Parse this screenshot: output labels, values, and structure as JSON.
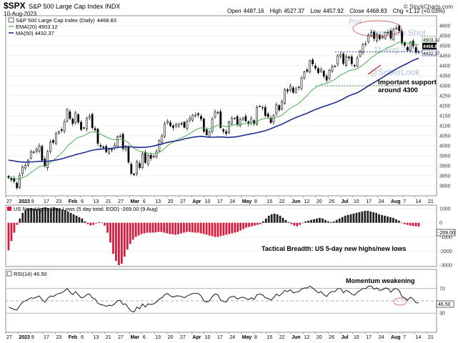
{
  "header": {
    "symbol": "$SPX",
    "title": "S&P 500 Large Cap Index INDX",
    "date": "10-Aug-2023",
    "ohlc": {
      "open_label": "Open",
      "open": "4487.16",
      "high_label": "High",
      "high": "4527.37",
      "low_label": "Low",
      "low": "4457.92",
      "close_label": "Close",
      "close": "4468.83",
      "chg_label": "Chg",
      "chg": "+1.12 (+0.03%)"
    },
    "credit": "© StockCharts.com"
  },
  "watermark": {
    "line1": "The Daily Shot",
    "date": "11-Aug-2023",
    "handle": "@SoberLook",
    "post": "Post"
  },
  "colors": {
    "up": "#000000",
    "down": "#000000",
    "ema": "#4caf50",
    "ma": "#1f2d8f",
    "support": "#2e7d32",
    "breadth_pos": "#222222",
    "breadth_neg": "#d81b3c",
    "rsi": "#000000",
    "callout": "#c62828",
    "watermark": "#6a8fc2"
  },
  "chart_data": [
    {
      "type": "candlestick",
      "title": "S&P 500 Large Cap Index (Daily) 4468.83",
      "ylim": [
        3750,
        4650
      ],
      "y_ticks": [
        3800,
        3850,
        3900,
        3950,
        4000,
        4050,
        4100,
        4150,
        4200,
        4250,
        4300,
        4350,
        4400,
        4450,
        4500,
        4550,
        4600
      ],
      "x_tick_labels": [
        "27",
        "2023",
        "9",
        "17",
        "23",
        "Feb",
        "6",
        "13",
        "21",
        "27",
        "Mar",
        "6",
        "13",
        "20",
        "27",
        "Apr",
        "10",
        "17",
        "24",
        "May",
        "8",
        "15",
        "22",
        "Jun",
        "12",
        "20",
        "26",
        "Jul",
        "10",
        "17",
        "24",
        "Aug",
        "7",
        "14",
        "21"
      ],
      "month_labels": [
        "Feb",
        "Mar",
        "Apr",
        "May",
        "Jun",
        "Jul",
        "Aug"
      ],
      "legend": [
        {
          "name": "S&P 500 Large Cap Index (Daily)",
          "value": "4468.83"
        },
        {
          "name": "EMA(20)",
          "value": "4503.12"
        },
        {
          "name": "MA(50)",
          "value": "4432.37"
        }
      ],
      "price_labels": {
        "ema": "4503.12",
        "close": "4468.83",
        "ma": "4432.37"
      },
      "close": [
        3840,
        3830,
        3822,
        3790,
        3853,
        3895,
        3901,
        3928,
        3970,
        3969,
        3983,
        3999,
        3928,
        3898,
        3972,
        4019,
        4017,
        4060,
        4071,
        4076,
        4120,
        4180,
        4136,
        4111,
        4164,
        4118,
        4081,
        4090,
        4137,
        4147,
        4090,
        4079,
        4012,
        3997,
        3991,
        3970,
        3982,
        3981,
        4003,
        4045,
        4048,
        3986,
        3992,
        3918,
        3861,
        3855,
        3920,
        3891,
        3960,
        3916,
        3951,
        3937,
        3948,
        3971,
        4027,
        4050,
        4109,
        4124,
        4100,
        4091,
        4105,
        4109,
        4108,
        4092,
        4124,
        4138,
        4151,
        4154,
        4155,
        4134,
        4072,
        4055,
        4071,
        4135,
        4169,
        4167,
        4091,
        4073,
        4061,
        4119,
        4137,
        4138,
        4108,
        4130,
        4137,
        4124,
        4110,
        4136,
        4110,
        4192,
        4198,
        4192,
        4151,
        4145,
        4116,
        4151,
        4205,
        4179,
        4221,
        4282,
        4273,
        4298,
        4267,
        4283,
        4293,
        4338,
        4369,
        4372,
        4425,
        4409,
        4388,
        4365,
        4381,
        4348,
        4328,
        4378,
        4396,
        4398,
        4450,
        4455,
        4411,
        4446,
        4439,
        4410,
        4399,
        4439,
        4473,
        4505,
        4510,
        4554,
        4565,
        4536,
        4555,
        4534,
        4544,
        4567,
        4566,
        4537,
        4582,
        4589,
        4576,
        4513,
        4502,
        4478,
        4518,
        4499,
        4467,
        4469
      ],
      "ema20_end": 4503.12,
      "ma50_end": 4432.37,
      "support_level": 4300,
      "close_level": 4468.83,
      "annotations": [
        "Important support around 4300"
      ]
    },
    {
      "type": "bar",
      "title": "US New Highs-New Lows (5 day total; EOD) -269.00 (9 Aug)",
      "ylim": [
        -3100,
        1100
      ],
      "y_ticks": [
        1000,
        0,
        -1000,
        -2000,
        -3000
      ],
      "last_value_label": "-269.00",
      "values": [
        -1950,
        -1300,
        -700,
        -150,
        300,
        700,
        900,
        1000,
        1050,
        1000,
        950,
        1000,
        1050,
        1100,
        1050,
        1000,
        1100,
        1050,
        1000,
        950,
        900,
        800,
        700,
        600,
        500,
        400,
        300,
        100,
        -100,
        -200,
        -150,
        -50,
        50,
        0,
        -200,
        -700,
        -1400,
        -2200,
        -2700,
        -3000,
        -2900,
        -2400,
        -1900,
        -1500,
        -1200,
        -1000,
        -900,
        -800,
        -750,
        -700,
        -700,
        -700,
        -680,
        -650,
        -650,
        -700,
        -750,
        -800,
        -820,
        -850,
        -820,
        -750,
        -700,
        -650,
        -650,
        -680,
        -700,
        -700,
        -750,
        -800,
        -850,
        -900,
        -950,
        -1000,
        -1000,
        -950,
        -900,
        -850,
        -800,
        -750,
        -700,
        -650,
        -550,
        -450,
        -350,
        -300,
        -250,
        -200,
        -150,
        -100,
        100,
        300,
        500,
        600,
        650,
        600,
        500,
        350,
        200,
        50,
        -100,
        -200,
        -250,
        -150,
        0,
        100,
        150,
        200,
        250,
        300,
        350,
        300,
        200,
        100,
        50,
        100,
        200,
        300,
        400,
        500,
        550,
        600,
        650,
        700,
        750,
        800,
        850,
        850,
        800,
        750,
        700,
        600,
        550,
        500,
        450,
        400,
        350,
        250,
        150,
        0,
        -100,
        -150,
        -200,
        -230,
        -250,
        -269
      ],
      "annotations": [
        "Tactical Breadth: US 5-day new highs/new lows"
      ]
    },
    {
      "type": "line",
      "title": "RSI(14) 46.50",
      "ylim": [
        0,
        100
      ],
      "reference_lines": [
        70,
        50,
        30
      ],
      "y_tick_labels": [
        "70",
        "30"
      ],
      "last_value_label": "46.50",
      "values": [
        40,
        38,
        36,
        35,
        42,
        48,
        50,
        52,
        55,
        54,
        56,
        58,
        52,
        48,
        54,
        58,
        57,
        60,
        62,
        63,
        66,
        70,
        64,
        60,
        65,
        60,
        55,
        56,
        60,
        61,
        55,
        53,
        46,
        44,
        43,
        41,
        43,
        42,
        45,
        50,
        51,
        44,
        45,
        38,
        33,
        32,
        40,
        37,
        45,
        40,
        45,
        44,
        45,
        48,
        53,
        55,
        60,
        62,
        58,
        56,
        58,
        58,
        57,
        55,
        58,
        60,
        62,
        62,
        62,
        58,
        50,
        48,
        50,
        57,
        61,
        60,
        51,
        49,
        48,
        55,
        57,
        57,
        53,
        55,
        56,
        54,
        52,
        55,
        52,
        60,
        61,
        60,
        55,
        54,
        51,
        55,
        61,
        58,
        62,
        67,
        65,
        68,
        63,
        64,
        65,
        69,
        71,
        71,
        74,
        71,
        67,
        63,
        65,
        60,
        57,
        63,
        65,
        65,
        70,
        70,
        63,
        67,
        65,
        61,
        59,
        64,
        67,
        70,
        70,
        74,
        74,
        69,
        71,
        67,
        68,
        71,
        70,
        64,
        69,
        70,
        67,
        57,
        55,
        51,
        56,
        53,
        47,
        46.5
      ],
      "annotations": [
        "Momentum weakening"
      ]
    }
  ]
}
